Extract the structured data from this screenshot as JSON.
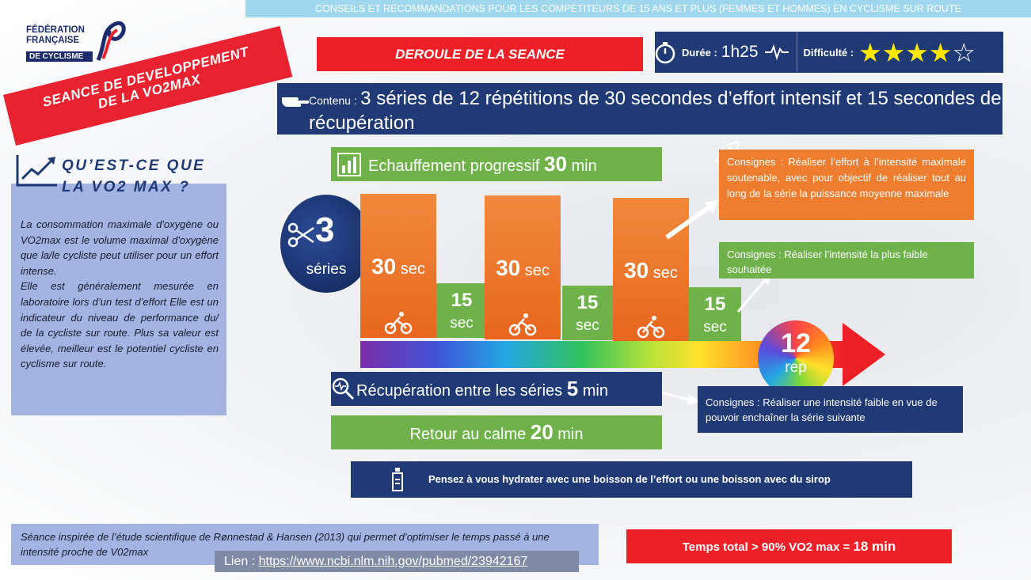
{
  "top_banner": "CONSEILS ET RECOMMANDATIONS POUR LES COMPÉTITEURS DE 15 ANS ET PLUS (FEMMES ET HOMMES)  EN CYCLISME SUR ROUTE",
  "logo": {
    "line1": "FÉDÉRATION",
    "line2": "FRANÇAISE",
    "line3": "DE CYCLISME"
  },
  "ribbon": {
    "line1": "SEANCE DE DEVELOPPEMENT",
    "line2": "DE LA VO2MAX"
  },
  "deroule": "DEROULE DE LA SEANCE",
  "duree": {
    "label": "Durée :",
    "value": "1h25",
    "difficulty_label": "Difficulté :",
    "difficulty_rating": 4,
    "difficulty_max": 5
  },
  "contenu": {
    "label": "Contenu :",
    "text": "3 séries de 12 répétitions de 30 secondes d’effort intensif et 15 secondes de récupération"
  },
  "vo2": {
    "title_line1": "QU’EST-CE QUE",
    "title_line2": "LA VO2 MAX ?",
    "p1": "La consommation maximale d'oxygène ou VO2max est le volume maximal d'oxygène que la/le cycliste peut utiliser pour un effort intense.",
    "p2": "Elle est généralement mesurée en laboratoire lors d’un test d’effort Elle est un indicateur du niveau de performance du/ de la cycliste sur route. Plus sa valeur est élevée, meilleur est le potentiel cycliste en cyclisme sur route."
  },
  "echauffement": {
    "text": "Echauffement progressif ",
    "value": "30",
    "unit": " min"
  },
  "series": {
    "value": "3",
    "label": "séries"
  },
  "effort": {
    "value": "30",
    "unit": " sec"
  },
  "recup_bar": {
    "value": "15",
    "unit": "sec"
  },
  "rep": {
    "value": "12",
    "unit": "rep"
  },
  "recuperation": {
    "text": "Récupération entre les séries ",
    "value": "5",
    "unit": " min"
  },
  "retour": {
    "text": "Retour au calme ",
    "value": "20",
    "unit": " min"
  },
  "consignes": {
    "c1": "Consignes : Réaliser l’effort à l’intensité maximale soutenable, avec pour objectif de réaliser tout au long de la série la puissance moyenne maximale",
    "c2": "Consignes : Réaliser l’intensité la plus faible souhaitée",
    "c3": "Consignes : Réaliser une intensité faible en vue de pouvoir enchaîner la série suivante"
  },
  "hydrate": "Pensez à vous hydrater avec une boisson de l’effort ou une boisson avec du sirop",
  "inspired": "Séance inspirée de l’étude scientifique de Rønnestad & Hansen (2013) qui permet d’optimiser le temps passé à une intensité proche de V02max",
  "lien": {
    "label": "Lien : ",
    "url": "https://www.ncbi.nlm.nih.gov/pubmed/23942167"
  },
  "total": {
    "text": "Temps total > 90% VO2 max =  ",
    "value": "18",
    "unit": " min"
  },
  "colors": {
    "navy": "#1f3a74",
    "red": "#ed2027",
    "green": "#6fb24a",
    "orange": "#ee7d2f",
    "lightblue": "#a4b4e2",
    "star": "#ffe700"
  }
}
